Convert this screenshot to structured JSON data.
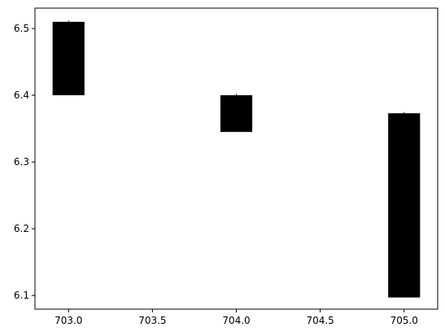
{
  "chart_data": {
    "type": "bar",
    "title": "",
    "xlabel": "",
    "ylabel": "",
    "xlim": [
      702.8,
      705.2
    ],
    "ylim": [
      6.0795,
      6.5305
    ],
    "grid": false,
    "legend": "none",
    "x_ticks": [
      "703.0",
      "703.5",
      "704.0",
      "704.5",
      "705.0"
    ],
    "y_ticks": [
      "6.1",
      "6.2",
      "6.3",
      "6.4",
      "6.5"
    ],
    "bars": [
      {
        "x": 703.0,
        "low": 6.4,
        "high": 6.51
      },
      {
        "x": 704.0,
        "low": 6.345,
        "high": 6.4
      },
      {
        "x": 705.0,
        "low": 6.097,
        "high": 6.373
      }
    ],
    "bar_color": "#000000"
  }
}
